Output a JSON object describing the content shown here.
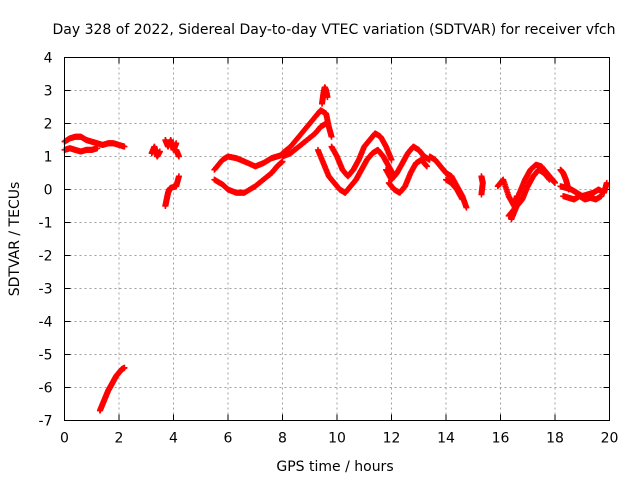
{
  "chart_data": {
    "type": "scatter",
    "title": "Day 328 of 2022, Sidereal Day-to-day VTEC variation (SDTVAR) for receiver vfch",
    "xlabel": "GPS time / hours",
    "ylabel": "SDTVAR / TECUs",
    "xlim": [
      0,
      20
    ],
    "ylim": [
      -7,
      4
    ],
    "xticks": [
      0,
      2,
      4,
      6,
      8,
      10,
      12,
      14,
      16,
      18,
      20
    ],
    "yticks": [
      -7,
      -6,
      -5,
      -4,
      -3,
      -2,
      -1,
      0,
      1,
      2,
      3,
      4
    ],
    "grid": true,
    "marker": "+",
    "color": "#ff0000",
    "series": [
      {
        "name": "SDTVAR",
        "segments": [
          {
            "x": [
              0.0,
              0.2,
              0.4,
              0.6,
              0.8,
              1.0,
              1.2,
              1.4,
              1.6,
              1.8,
              2.0,
              2.2
            ],
            "y": [
              1.45,
              1.55,
              1.6,
              1.6,
              1.5,
              1.45,
              1.4,
              1.35,
              1.4,
              1.4,
              1.35,
              1.3
            ]
          },
          {
            "x": [
              0.0,
              0.2,
              0.4,
              0.6,
              0.8,
              1.0,
              1.2
            ],
            "y": [
              1.2,
              1.25,
              1.2,
              1.15,
              1.2,
              1.2,
              1.25
            ]
          },
          {
            "x": [
              1.3,
              1.4,
              1.5,
              1.6,
              1.7,
              1.8,
              1.9,
              2.0,
              2.1,
              2.2
            ],
            "y": [
              -6.7,
              -6.5,
              -6.3,
              -6.1,
              -5.95,
              -5.8,
              -5.65,
              -5.55,
              -5.45,
              -5.4
            ]
          },
          {
            "x": [
              3.2,
              3.3,
              3.4,
              3.5
            ],
            "y": [
              1.1,
              1.3,
              1.0,
              1.15
            ]
          },
          {
            "x": [
              3.7,
              3.8,
              3.9,
              4.0,
              4.1
            ],
            "y": [
              1.5,
              1.3,
              1.5,
              1.2,
              1.4
            ]
          },
          {
            "x": [
              4.1,
              4.2
            ],
            "y": [
              1.2,
              1.0
            ]
          },
          {
            "x": [
              3.7,
              3.75,
              3.8,
              3.85,
              3.9,
              4.1,
              4.2
            ],
            "y": [
              -0.5,
              -0.3,
              -0.1,
              0.0,
              0.05,
              0.1,
              0.4
            ]
          },
          {
            "x": [
              5.5,
              5.8,
              6.0,
              6.3,
              6.6,
              7.0,
              7.3,
              7.6,
              7.8,
              8.0
            ],
            "y": [
              0.6,
              0.9,
              1.0,
              0.95,
              0.85,
              0.7,
              0.8,
              0.95,
              1.0,
              1.05
            ]
          },
          {
            "x": [
              5.5,
              5.8,
              6.0,
              6.3,
              6.6,
              7.0,
              7.3,
              7.6,
              7.8,
              8.0
            ],
            "y": [
              0.3,
              0.15,
              0.0,
              -0.1,
              -0.1,
              0.1,
              0.3,
              0.5,
              0.7,
              0.85
            ]
          },
          {
            "x": [
              8.0,
              8.3,
              8.6,
              8.9,
              9.2,
              9.4,
              9.6,
              9.7,
              9.8
            ],
            "y": [
              1.1,
              1.3,
              1.6,
              1.9,
              2.2,
              2.4,
              2.3,
              1.9,
              1.6
            ]
          },
          {
            "x": [
              8.0,
              8.3,
              8.6,
              8.9,
              9.2,
              9.4,
              9.6
            ],
            "y": [
              1.0,
              1.1,
              1.3,
              1.5,
              1.7,
              1.9,
              2.0
            ]
          },
          {
            "x": [
              9.45,
              9.5,
              9.55,
              9.6,
              9.65
            ],
            "y": [
              2.6,
              2.9,
              3.1,
              3.0,
              2.8
            ]
          },
          {
            "x": [
              9.3,
              9.5,
              9.7,
              9.9,
              10.1,
              10.3
            ],
            "y": [
              1.2,
              0.8,
              0.4,
              0.2,
              0.0,
              -0.1
            ]
          },
          {
            "x": [
              9.8,
              10.0,
              10.2,
              10.4,
              10.6,
              10.8,
              11.0,
              11.2,
              11.4,
              11.6,
              11.8,
              12.0
            ],
            "y": [
              1.3,
              1.0,
              0.6,
              0.4,
              0.6,
              0.9,
              1.3,
              1.5,
              1.7,
              1.6,
              1.3,
              0.9
            ]
          },
          {
            "x": [
              10.3,
              10.5,
              10.7,
              10.9,
              11.1,
              11.3,
              11.5,
              11.7,
              11.9,
              12.1
            ],
            "y": [
              -0.1,
              0.1,
              0.3,
              0.6,
              0.9,
              1.1,
              1.2,
              1.0,
              0.7,
              0.4
            ]
          },
          {
            "x": [
              11.8,
              12.0,
              12.2,
              12.4,
              12.6,
              12.8,
              13.0,
              13.2,
              13.4
            ],
            "y": [
              0.6,
              0.3,
              0.5,
              0.8,
              1.1,
              1.3,
              1.2,
              1.0,
              0.9
            ]
          },
          {
            "x": [
              11.9,
              12.1,
              12.3,
              12.5,
              12.7,
              12.9,
              13.1,
              13.3
            ],
            "y": [
              0.2,
              0.0,
              -0.1,
              0.1,
              0.5,
              0.8,
              0.9,
              0.7
            ]
          },
          {
            "x": [
              13.4,
              13.6,
              13.8,
              14.0,
              14.2,
              14.4,
              14.6,
              14.75
            ],
            "y": [
              1.0,
              0.9,
              0.7,
              0.5,
              0.4,
              0.1,
              -0.2,
              -0.55
            ]
          },
          {
            "x": [
              14.0,
              14.2,
              14.4,
              14.6
            ],
            "y": [
              0.3,
              0.2,
              0.0,
              -0.3
            ]
          },
          {
            "x": [
              15.3,
              15.35,
              15.3
            ],
            "y": [
              0.4,
              0.2,
              -0.15
            ]
          },
          {
            "x": [
              15.9,
              16.1,
              16.3,
              16.5,
              16.6
            ],
            "y": [
              0.1,
              0.3,
              -0.2,
              -0.5,
              -0.2
            ]
          },
          {
            "x": [
              16.3,
              16.5,
              16.7,
              16.9,
              17.1,
              17.3,
              17.5,
              17.7,
              17.9,
              18.0
            ],
            "y": [
              -0.8,
              -0.6,
              -0.1,
              0.3,
              0.6,
              0.75,
              0.7,
              0.5,
              0.3,
              0.2
            ]
          },
          {
            "x": [
              16.4,
              16.6,
              16.8,
              17.0,
              17.2,
              17.4,
              17.6,
              17.8
            ],
            "y": [
              -0.9,
              -0.5,
              -0.3,
              0.1,
              0.4,
              0.6,
              0.5,
              0.3
            ]
          },
          {
            "x": [
              18.2,
              18.3,
              18.4,
              18.5
            ],
            "y": [
              0.6,
              0.5,
              0.3,
              0.0
            ]
          },
          {
            "x": [
              18.2,
              18.4,
              18.6,
              18.8,
              19.0,
              19.2,
              19.4,
              19.6,
              19.8,
              19.9
            ],
            "y": [
              0.1,
              0.05,
              0.0,
              -0.1,
              -0.2,
              -0.15,
              -0.1,
              0.0,
              -0.1,
              0.2
            ]
          },
          {
            "x": [
              18.3,
              18.5,
              18.7,
              18.9,
              19.1,
              19.3,
              19.5,
              19.7
            ],
            "y": [
              -0.2,
              -0.25,
              -0.3,
              -0.2,
              -0.3,
              -0.25,
              -0.3,
              -0.2
            ]
          }
        ]
      }
    ]
  }
}
